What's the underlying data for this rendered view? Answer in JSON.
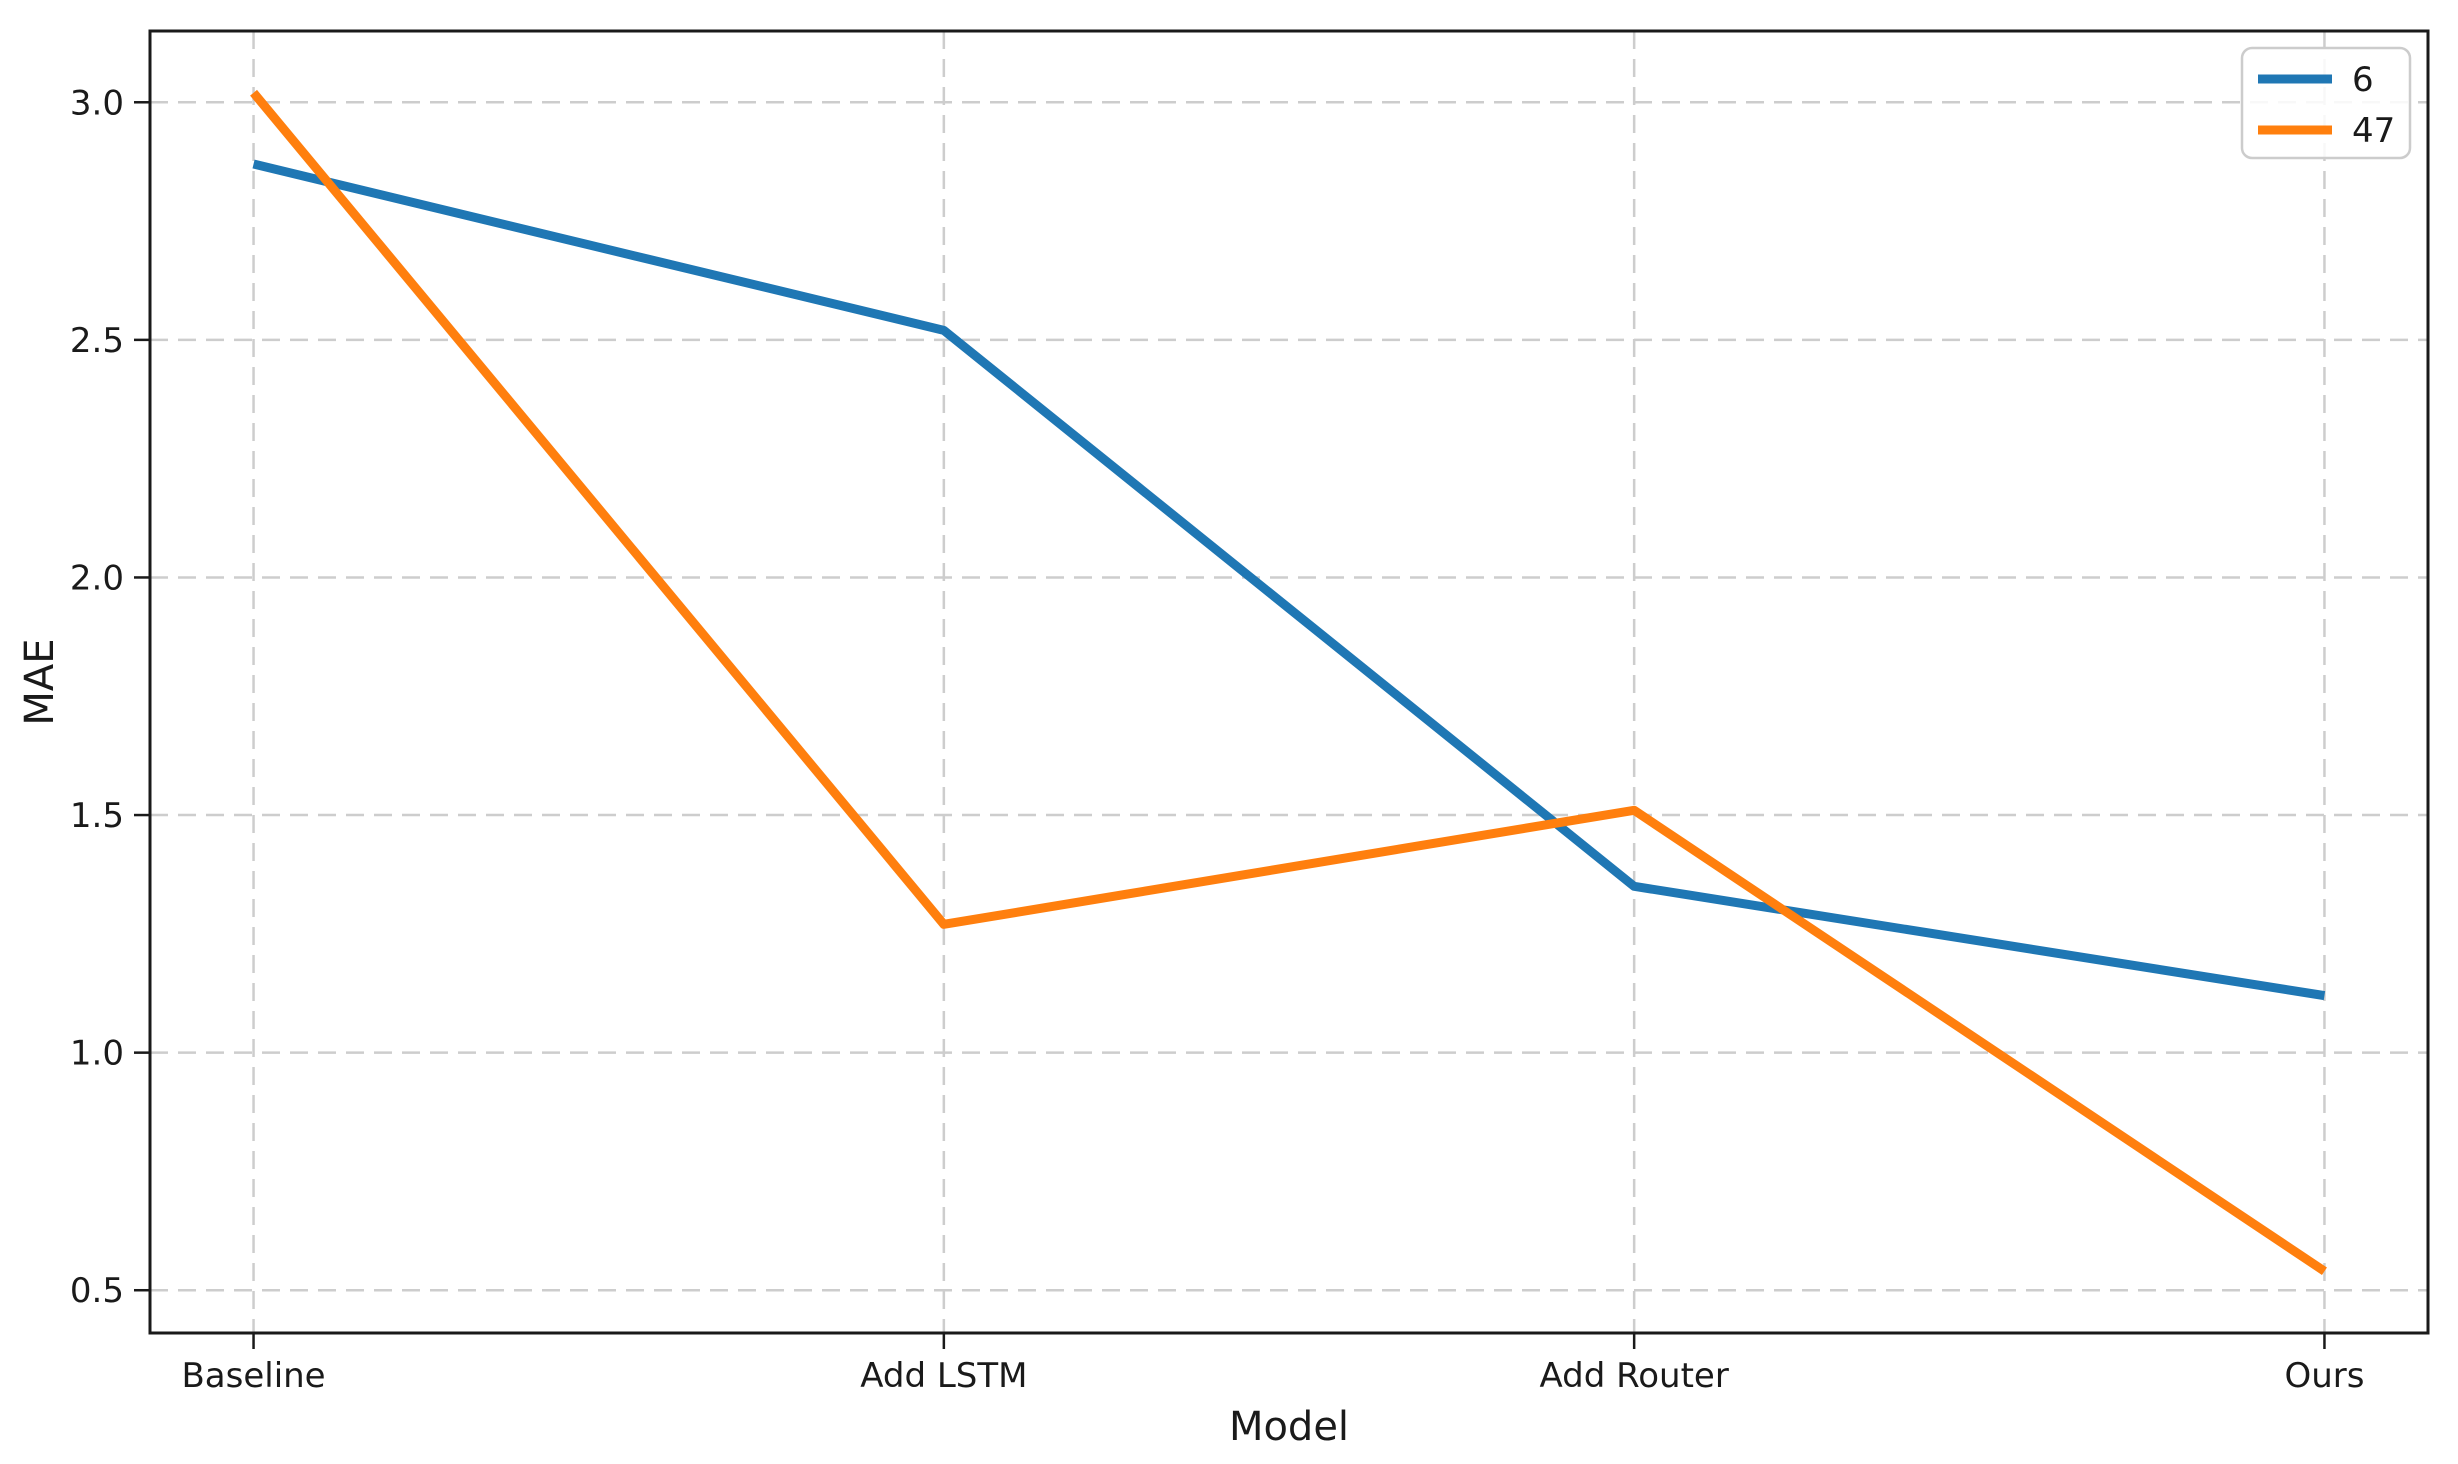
{
  "chart_data": {
    "type": "line",
    "title": "",
    "xlabel": "Model",
    "ylabel": "MAE",
    "categories": [
      "Baseline",
      "Add LSTM",
      "Add Router",
      "Ours"
    ],
    "series": [
      {
        "name": "6",
        "color": "#1f77b4",
        "values": [
          2.87,
          2.52,
          1.35,
          1.12
        ]
      },
      {
        "name": "47",
        "color": "#ff7f0e",
        "values": [
          3.02,
          1.27,
          1.51,
          0.54
        ]
      }
    ],
    "yticks": [
      0.5,
      1.0,
      1.5,
      2.0,
      2.5,
      3.0
    ],
    "ytick_labels": [
      "0.5",
      "1.0",
      "1.5",
      "2.0",
      "2.5",
      "3.0"
    ],
    "ylim": [
      0.41,
      3.15
    ],
    "xlim": [
      -0.15,
      3.15
    ],
    "grid": true,
    "grid_style": "dashed",
    "legend": {
      "position": "upper right"
    },
    "colors": {
      "grid": "#cdcdcd",
      "axis": "#1a1a1a",
      "legend_border": "#cccccc",
      "background": "#ffffff"
    }
  }
}
